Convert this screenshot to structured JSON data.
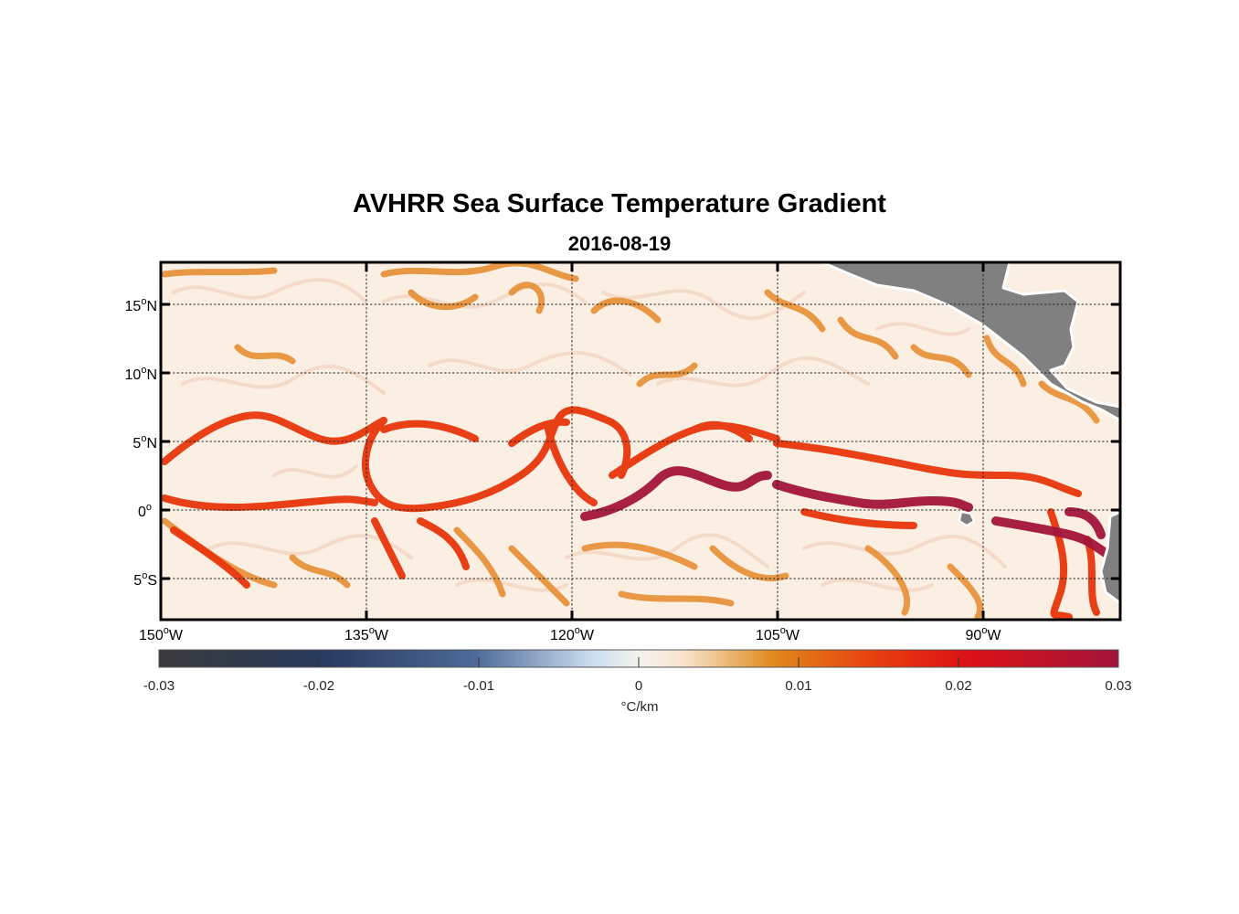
{
  "title": "AVHRR Sea Surface Temperature Gradient",
  "subtitle": "2016-08-19",
  "map": {
    "lon_range": [
      -150,
      -80
    ],
    "lat_range": [
      -8,
      18
    ],
    "lon_ticks": [
      {
        "value": -150,
        "label": "150",
        "sup": "o",
        "suffix": "W"
      },
      {
        "value": -135,
        "label": "135",
        "sup": "o",
        "suffix": "W"
      },
      {
        "value": -120,
        "label": "120",
        "sup": "o",
        "suffix": "W"
      },
      {
        "value": -105,
        "label": "105",
        "sup": "o",
        "suffix": "W"
      },
      {
        "value": -90,
        "label": "90",
        "sup": "o",
        "suffix": "W"
      }
    ],
    "lat_ticks": [
      {
        "value": 15,
        "label": "15",
        "sup": "o",
        "suffix": "N"
      },
      {
        "value": 10,
        "label": "10",
        "sup": "o",
        "suffix": "N"
      },
      {
        "value": 5,
        "label": "5",
        "sup": "o",
        "suffix": "N"
      },
      {
        "value": 0,
        "label": "0",
        "sup": "o",
        "suffix": ""
      },
      {
        "value": -5,
        "label": "5",
        "sup": "o",
        "suffix": "S"
      }
    ],
    "grid": "dotted",
    "land_color": "#808080",
    "background_color": "#fbeee2"
  },
  "colorbar": {
    "range": [
      -0.03,
      0.03
    ],
    "ticks": [
      "-0.03",
      "-0.02",
      "-0.01",
      "0",
      "0.01",
      "0.02",
      "0.03"
    ],
    "tick_values": [
      -0.03,
      -0.02,
      -0.01,
      0,
      0.01,
      0.02,
      0.03
    ],
    "unit": "°C/km",
    "colors": [
      "#3a3a3a",
      "#283a5e",
      "#4d6a98",
      "#c9dcef",
      "#f7ecdf",
      "#e08a1c",
      "#e8430e",
      "#dc1216",
      "#a3143a"
    ]
  }
}
